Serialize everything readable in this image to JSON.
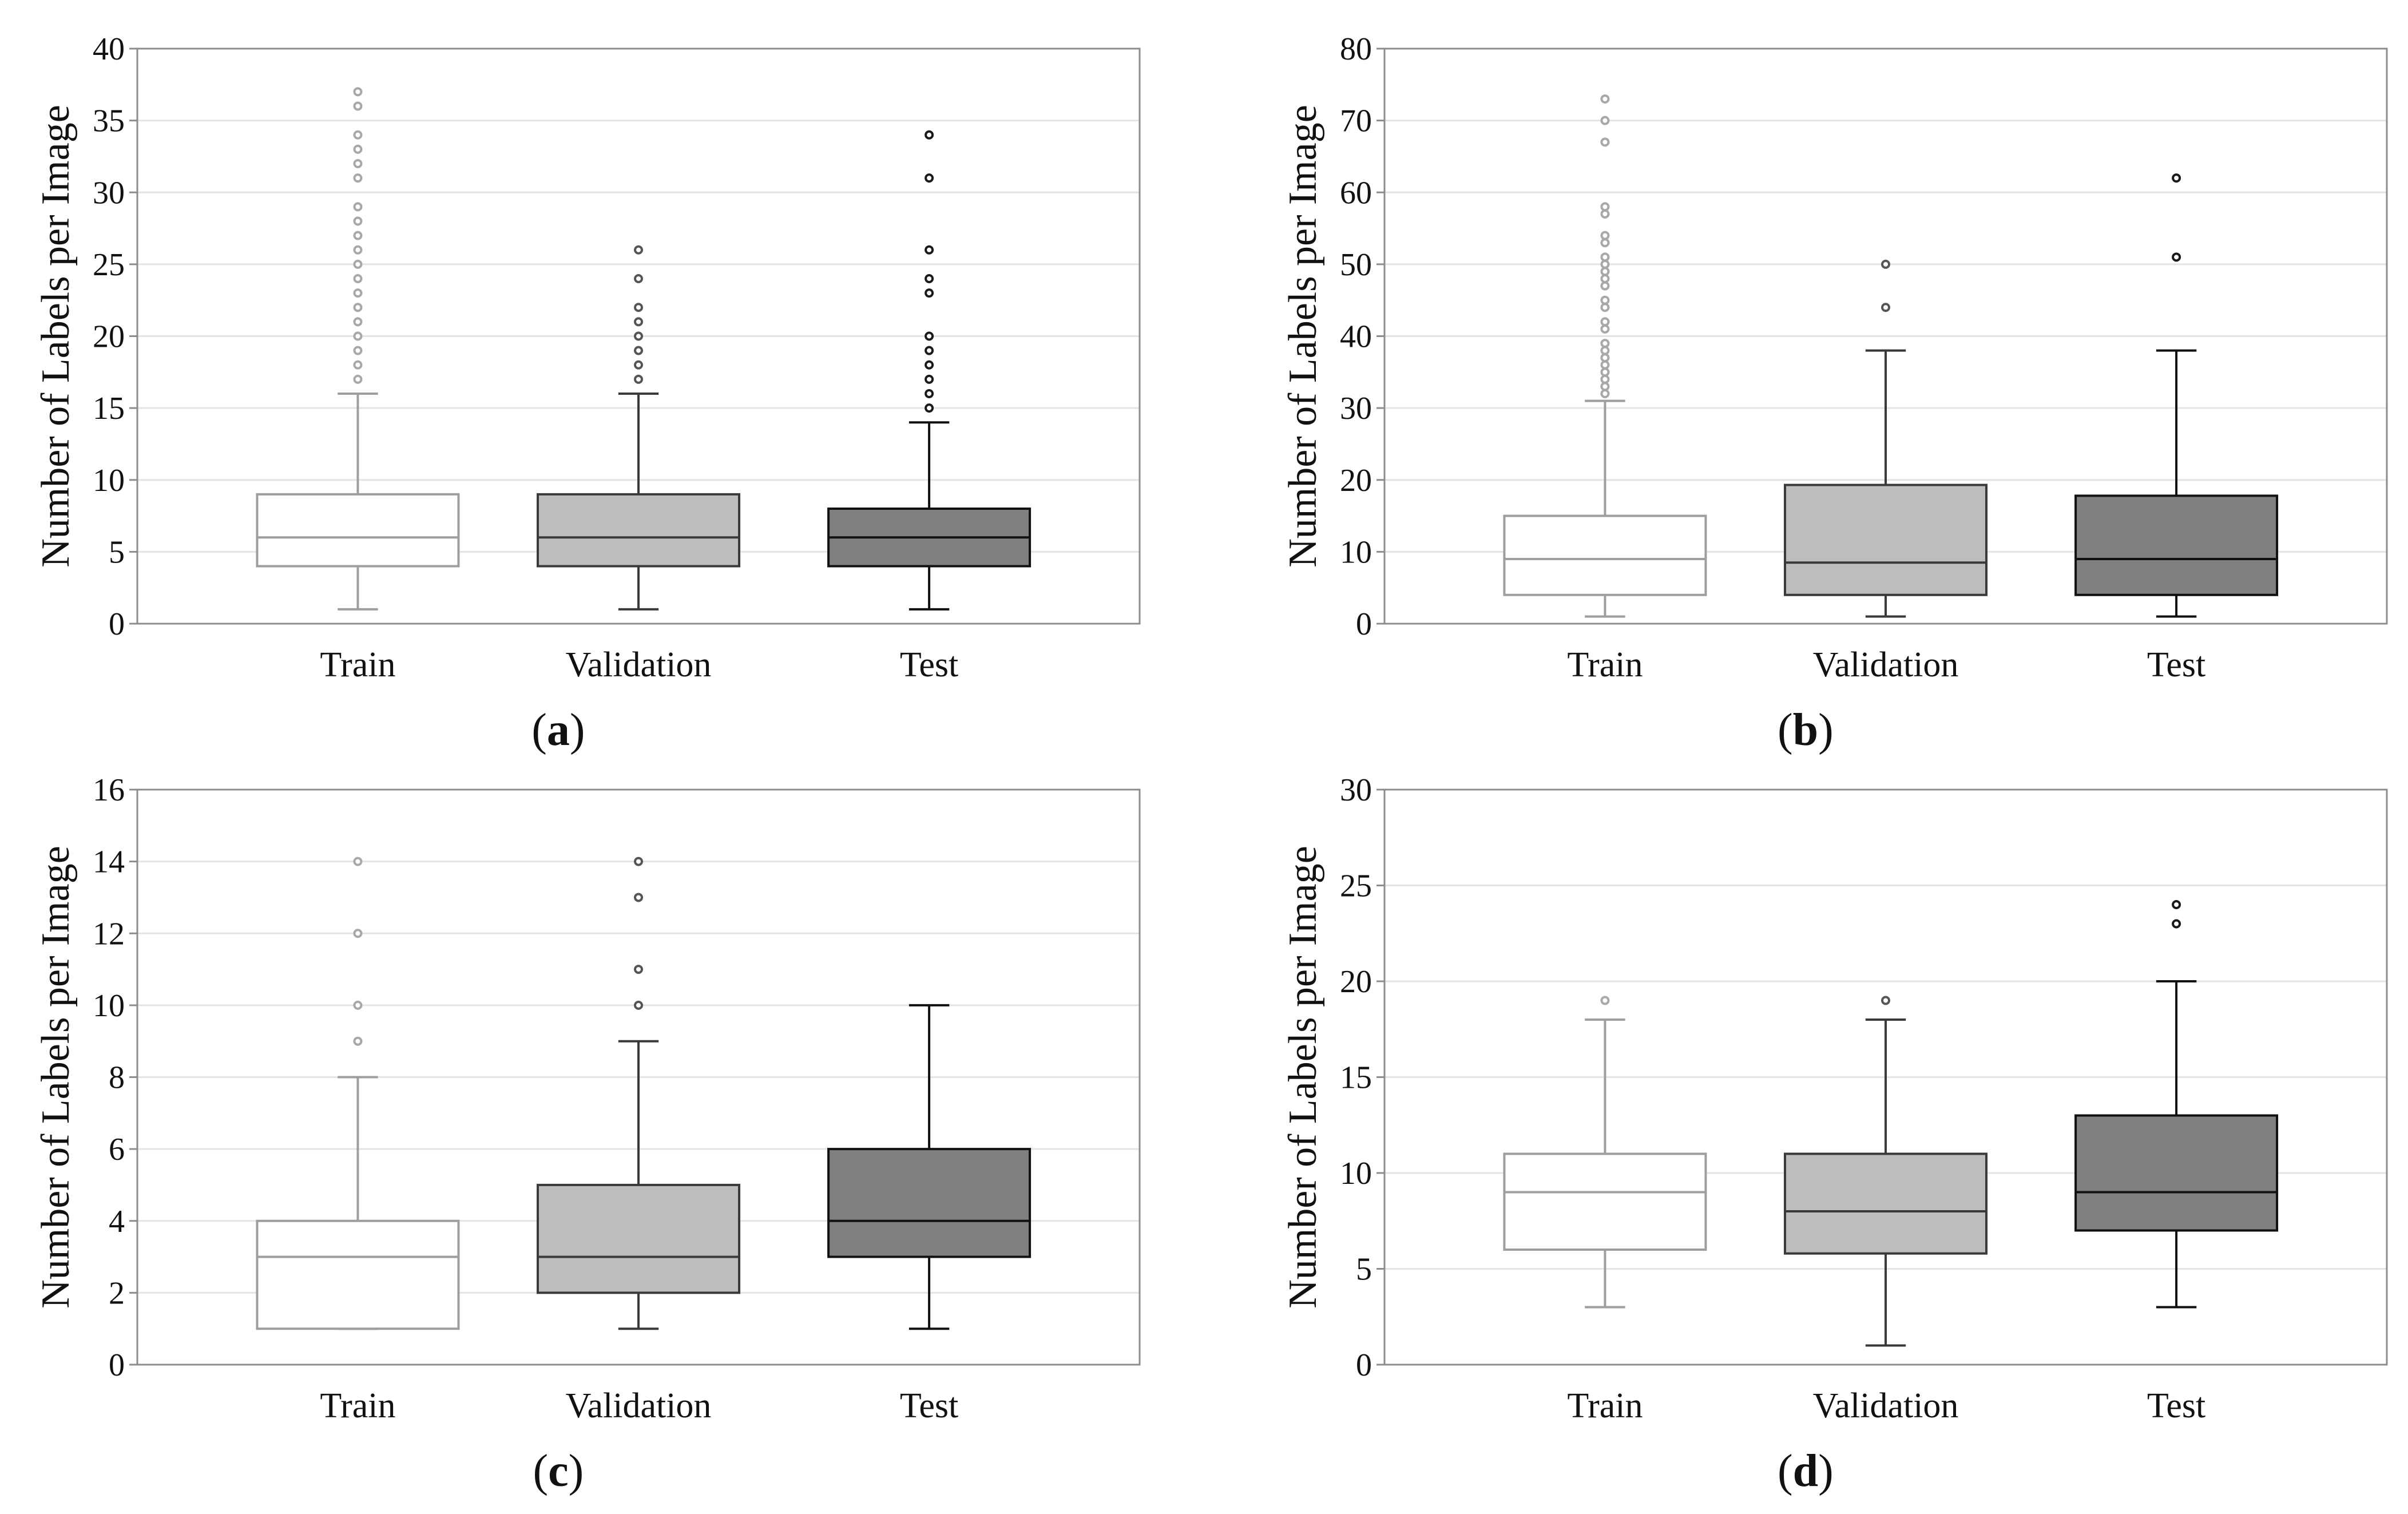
{
  "chart_data": [
    {
      "type": "box",
      "id": "a",
      "caption_letter": "a",
      "ylabel": "Number of Labels per Image",
      "ylim": [
        0,
        40
      ],
      "yticks": [
        0,
        5,
        10,
        15,
        20,
        25,
        30,
        35,
        40
      ],
      "categories": [
        "Train",
        "Validation",
        "Test"
      ],
      "boxes": [
        {
          "name": "Train",
          "whisker_low": 1,
          "q1": 4,
          "median": 6,
          "q3": 9,
          "whisker_high": 16,
          "outliers": [
            17,
            18,
            19,
            20,
            21,
            22,
            23,
            24,
            25,
            26,
            27,
            28,
            29,
            31,
            32,
            33,
            34,
            36,
            37
          ]
        },
        {
          "name": "Validation",
          "whisker_low": 1,
          "q1": 4,
          "median": 6,
          "q3": 9,
          "whisker_high": 16,
          "outliers": [
            17,
            18,
            19,
            20,
            21,
            22,
            24,
            26
          ]
        },
        {
          "name": "Test",
          "whisker_low": 1,
          "q1": 4,
          "median": 6,
          "q3": 8,
          "whisker_high": 14,
          "outliers": [
            15,
            16,
            17,
            18,
            19,
            20,
            23,
            24,
            26,
            31,
            34
          ]
        }
      ]
    },
    {
      "type": "box",
      "id": "b",
      "caption_letter": "b",
      "ylabel": "Number of Labels per Image",
      "ylim": [
        0,
        80
      ],
      "yticks": [
        0,
        10,
        20,
        30,
        40,
        50,
        60,
        70,
        80
      ],
      "categories": [
        "Train",
        "Validation",
        "Test"
      ],
      "boxes": [
        {
          "name": "Train",
          "whisker_low": 1,
          "q1": 4,
          "median": 9,
          "q3": 15,
          "whisker_high": 31,
          "outliers": [
            32,
            33,
            34,
            35,
            36,
            37,
            38,
            39,
            41,
            42,
            44,
            45,
            47,
            48,
            49,
            50,
            51,
            53,
            54,
            57,
            58,
            67,
            70,
            73
          ]
        },
        {
          "name": "Validation",
          "whisker_low": 1,
          "q1": 4,
          "median": 8.5,
          "q3": 19.3,
          "whisker_high": 38,
          "outliers": [
            44,
            50
          ]
        },
        {
          "name": "Test",
          "whisker_low": 1,
          "q1": 4,
          "median": 9,
          "q3": 17.8,
          "whisker_high": 38,
          "outliers": [
            51,
            62
          ]
        }
      ]
    },
    {
      "type": "box",
      "id": "c",
      "caption_letter": "c",
      "ylabel": "Number of Labels per Image",
      "ylim": [
        0,
        16
      ],
      "yticks": [
        0,
        2,
        4,
        6,
        8,
        10,
        12,
        14,
        16
      ],
      "categories": [
        "Train",
        "Validation",
        "Test"
      ],
      "boxes": [
        {
          "name": "Train",
          "whisker_low": 1,
          "q1": 1,
          "median": 3,
          "q3": 4,
          "whisker_high": 8,
          "outliers": [
            9,
            10,
            12,
            14
          ]
        },
        {
          "name": "Validation",
          "whisker_low": 1,
          "q1": 2,
          "median": 3,
          "q3": 5,
          "whisker_high": 9,
          "outliers": [
            10,
            11,
            13,
            14
          ]
        },
        {
          "name": "Test",
          "whisker_low": 1,
          "q1": 3,
          "median": 4,
          "q3": 6,
          "whisker_high": 10,
          "outliers": []
        }
      ]
    },
    {
      "type": "box",
      "id": "d",
      "caption_letter": "d",
      "ylabel": "Number of Labels per Image",
      "ylim": [
        0,
        30
      ],
      "yticks": [
        0,
        5,
        10,
        15,
        20,
        25,
        30
      ],
      "categories": [
        "Train",
        "Validation",
        "Test"
      ],
      "boxes": [
        {
          "name": "Train",
          "whisker_low": 3,
          "q1": 6,
          "median": 9,
          "q3": 11,
          "whisker_high": 18,
          "outliers": [
            19
          ]
        },
        {
          "name": "Validation",
          "whisker_low": 1,
          "q1": 5.8,
          "median": 8,
          "q3": 11,
          "whisker_high": 18,
          "outliers": [
            19
          ]
        },
        {
          "name": "Test",
          "whisker_low": 3,
          "q1": 7,
          "median": 9,
          "q3": 13,
          "whisker_high": 20,
          "outliers": [
            23,
            24
          ]
        }
      ]
    }
  ],
  "colors": {
    "train": {
      "fill": "#ffffff",
      "stroke": "#9e9e9e",
      "outlier": "#a8a8a8"
    },
    "validation": {
      "fill": "#bdbdbd",
      "stroke": "#3a3a3a",
      "outlier": "#555555"
    },
    "test": {
      "fill": "#808080",
      "stroke": "#111111",
      "outlier": "#1a1a1a"
    },
    "grid": "#e4e4e4",
    "frame": "#8c8c8c"
  }
}
